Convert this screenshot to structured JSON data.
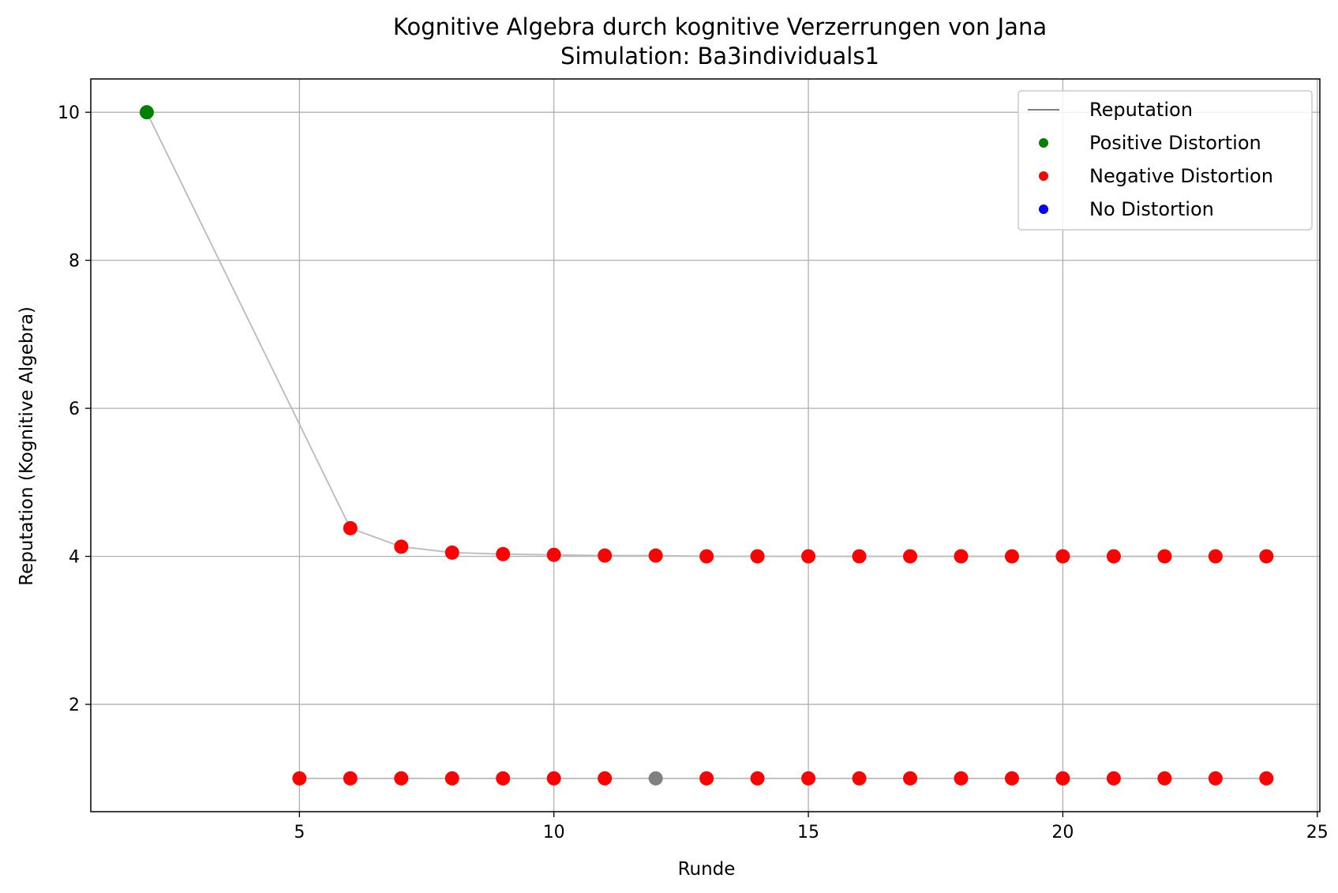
{
  "chart_data": {
    "type": "scatter",
    "title": "Kognitive Algebra durch kognitive Verzerrungen von Jana",
    "subtitle": "Simulation: Ba3individuals1",
    "xlabel": "Runde",
    "ylabel": "Reputation (Kognitive Algebra)",
    "xlim": [
      0.9,
      25.05
    ],
    "ylim": [
      0.55,
      10.45
    ],
    "xticks": [
      5,
      10,
      15,
      20,
      25
    ],
    "yticks": [
      2,
      4,
      6,
      8,
      10
    ],
    "grid": true,
    "legend_position": "top-right",
    "legend": [
      {
        "label": "Reputation",
        "marker": "line",
        "color": "#808080"
      },
      {
        "label": "Positive Distortion",
        "marker": "dot",
        "color": "#008000"
      },
      {
        "label": "Negative Distortion",
        "marker": "dot",
        "color": "#ff0000"
      },
      {
        "label": "No Distortion",
        "marker": "dot",
        "color": "#0000ff"
      }
    ],
    "colors": {
      "positive": "#008000",
      "negative": "#ff0000",
      "none": "#808080",
      "line": "#bfbfbf"
    },
    "series": [
      {
        "x": [
          2,
          6,
          7,
          8,
          9,
          10,
          11,
          12,
          13,
          14,
          15,
          16,
          17,
          18,
          19,
          20,
          21,
          22,
          23,
          24
        ],
        "y": [
          10,
          4.38,
          4.13,
          4.05,
          4.03,
          4.02,
          4.01,
          4.01,
          4.0,
          4.0,
          4.0,
          4.0,
          4.0,
          4.0,
          4.0,
          4.0,
          4.0,
          4.0,
          4.0,
          4.0
        ],
        "distortion": [
          "positive",
          "negative",
          "negative",
          "negative",
          "negative",
          "negative",
          "negative",
          "negative",
          "negative",
          "negative",
          "negative",
          "negative",
          "negative",
          "negative",
          "negative",
          "negative",
          "negative",
          "negative",
          "negative",
          "negative"
        ]
      },
      {
        "x": [
          5,
          6,
          7,
          8,
          9,
          10,
          11,
          12,
          13,
          14,
          15,
          16,
          17,
          18,
          19,
          20,
          21,
          22,
          23,
          24
        ],
        "y": [
          1,
          1,
          1,
          1,
          1,
          1,
          1,
          1,
          1,
          1,
          1,
          1,
          1,
          1,
          1,
          1,
          1,
          1,
          1,
          1
        ],
        "distortion": [
          "negative",
          "negative",
          "negative",
          "negative",
          "negative",
          "negative",
          "negative",
          "none",
          "negative",
          "negative",
          "negative",
          "negative",
          "negative",
          "negative",
          "negative",
          "negative",
          "negative",
          "negative",
          "negative",
          "negative"
        ]
      }
    ]
  }
}
